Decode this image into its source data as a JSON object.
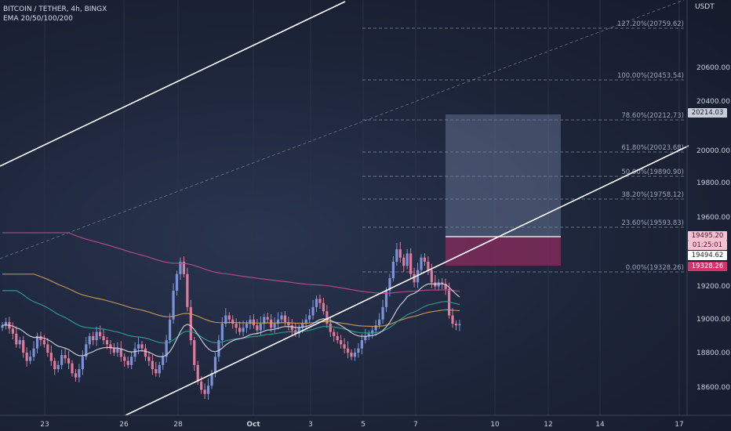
{
  "header": {
    "title": "BITCOIN / TETHER, 4h, BINGX",
    "indicator": "EMA 20/50/100/200"
  },
  "price_axis": {
    "currency": "USDT",
    "ticks": [
      "20600.00",
      "20400.00",
      "20000.00",
      "19800.00",
      "19600.00",
      "19200.00",
      "19000.00",
      "18800.00",
      "18600.00"
    ]
  },
  "time_axis": {
    "ticks": [
      "23",
      "26",
      "28",
      "Oct",
      "3",
      "5",
      "7",
      "10",
      "12",
      "14",
      "17"
    ]
  },
  "fib_levels": [
    {
      "label": "127.20%(20759.62)"
    },
    {
      "label": "100.00%(20453.54)"
    },
    {
      "label": "78.60%(20212.73)"
    },
    {
      "label": "61.80%(20023.68)"
    },
    {
      "label": "50.00%(19890.90)"
    },
    {
      "label": "38.20%(19758.12)"
    },
    {
      "label": "23.60%(19593.83)"
    },
    {
      "label": "0.00%(19328.26)"
    }
  ],
  "price_tags": {
    "current_price": "19495.20",
    "countdown": "01:25:01",
    "last_price": "19494.62",
    "stop_price": "19328.26",
    "target_price": "20214.03"
  },
  "colors": {
    "up_candle": "#7b93d6",
    "down_candle": "#e07a9a",
    "ema20": "#d9dce6",
    "ema50": "#2fa89a",
    "ema100": "#d6a35a",
    "ema200": "#c04a8e",
    "channel": "#ffffff",
    "target_zone": "#6f7d9e",
    "stop_zone": "#8a2c5c"
  }
}
